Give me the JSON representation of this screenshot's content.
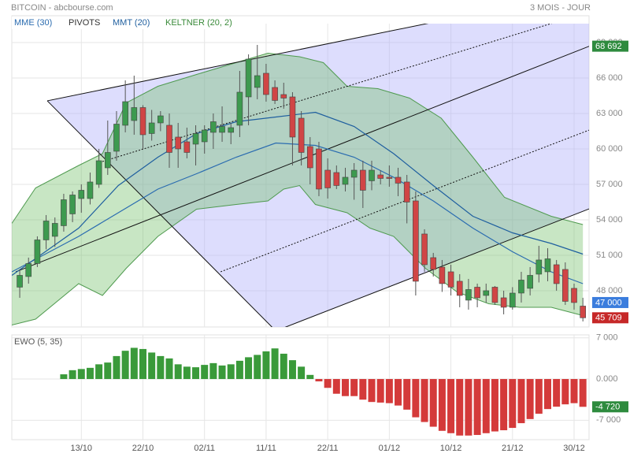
{
  "chart_data": [
    {
      "type": "candlestick",
      "title": "BITCOIN - abcbourse.com",
      "subtitle": "3 MOIS - JOUR",
      "up_color": "#3d9a4f",
      "down_color": "#d04545",
      "xlim": [
        -0.9,
        64.7
      ],
      "ylim": [
        44930,
        70600
      ],
      "yticks": [
        {
          "value": 69000,
          "label": "69 000"
        },
        {
          "value": 66000,
          "label": "66 000"
        },
        {
          "value": 63000,
          "label": "63 000"
        },
        {
          "value": 60000,
          "label": "60 000"
        },
        {
          "value": 57000,
          "label": "57 000"
        },
        {
          "value": 54000,
          "label": "54 000"
        },
        {
          "value": 51000,
          "label": "51 000"
        },
        {
          "value": 48000,
          "label": "48 000"
        }
      ],
      "grid": true,
      "open": [
        48300,
        49200,
        50300,
        52300,
        52600,
        53500,
        54500,
        55800,
        55800,
        57000,
        58400,
        59800,
        62000,
        62400,
        63500,
        61300,
        62200,
        62000,
        61000,
        60600,
        60400,
        60600,
        61400,
        61400,
        61400,
        62000,
        64400,
        65200,
        66400,
        65200,
        64600,
        64400,
        62600,
        60200,
        60000,
        58200,
        58000,
        57000,
        57600,
        58200,
        57300,
        57800,
        57600,
        57600,
        57200,
        55600,
        52800,
        50800,
        50000,
        49600,
        48800,
        47200,
        48300,
        47600,
        48300,
        47400,
        46600,
        47800,
        48200,
        49400,
        49600,
        50200,
        49800,
        48200,
        46700
      ],
      "high": [
        49800,
        50800,
        52600,
        54400,
        54200,
        56200,
        56400,
        57000,
        58000,
        60000,
        62400,
        63200,
        65800,
        66200,
        63700,
        63300,
        63200,
        63000,
        62200,
        61800,
        62000,
        62000,
        63000,
        63600,
        62200,
        66600,
        68000,
        68800,
        67200,
        65800,
        65600,
        64800,
        63200,
        61000,
        60600,
        59200,
        58600,
        58400,
        58800,
        59000,
        59000,
        58200,
        58600,
        58400,
        57800,
        56400,
        53200,
        51200,
        50600,
        50200,
        49400,
        49000,
        48600,
        48600,
        48400,
        48000,
        48300,
        49600,
        50000,
        51800,
        51600,
        50600,
        50400,
        48600,
        47400
      ],
      "low": [
        47400,
        48600,
        50000,
        51500,
        51700,
        53000,
        53800,
        54600,
        55300,
        56700,
        57800,
        59000,
        61400,
        61200,
        60000,
        60700,
        61500,
        58400,
        58400,
        59200,
        58600,
        59600,
        60000,
        60600,
        60400,
        61000,
        62000,
        64200,
        64000,
        63800,
        63400,
        58600,
        58600,
        57000,
        56000,
        55800,
        56600,
        56400,
        55700,
        55000,
        56500,
        57000,
        56800,
        56000,
        53700,
        47600,
        49600,
        49200,
        47900,
        47600,
        46600,
        46400,
        46600,
        47000,
        46800,
        46000,
        46400,
        47000,
        47600,
        48700,
        48800,
        48000,
        46800,
        46400,
        45400
      ],
      "close": [
        49300,
        50300,
        52300,
        53900,
        53700,
        55700,
        56100,
        56500,
        57200,
        59000,
        59700,
        62100,
        64000,
        63500,
        61200,
        62200,
        62800,
        59700,
        60000,
        59700,
        61300,
        61600,
        62300,
        61900,
        61800,
        64800,
        67600,
        66200,
        64600,
        64100,
        64300,
        61000,
        59700,
        58400,
        56600,
        56700,
        56900,
        57600,
        58200,
        56500,
        58200,
        57500,
        57500,
        57100,
        55500,
        48800,
        50200,
        49800,
        48600,
        48300,
        47600,
        48100,
        47400,
        48000,
        47000,
        46600,
        47800,
        48900,
        49300,
        50600,
        50700,
        48600,
        47100,
        47000,
        45709
      ],
      "keltner": {
        "name": "KELTNER (20, 2)",
        "color": "#4f9a4f",
        "fill": "rgba(110,190,100,0.38)",
        "upper": {
          "x": [
            -0.9,
            1.8,
            6.7,
            9.4,
            12.1,
            15.7,
            20.1,
            24.6,
            28.2,
            31.8,
            34.5,
            37.2,
            40.7,
            44.3,
            47.9,
            51.5,
            55.1,
            60.4,
            64
          ],
          "values": [
            53700,
            56700,
            58600,
            59600,
            63900,
            65300,
            66300,
            67300,
            68100,
            67800,
            67300,
            65300,
            65100,
            64300,
            62600,
            59300,
            55900,
            54300,
            53600
          ]
        },
        "lower": {
          "x": [
            -0.9,
            1.8,
            6.7,
            9.4,
            12.1,
            15.7,
            20.1,
            24.6,
            28.2,
            30,
            31.8,
            33.6,
            37.2,
            39.8,
            42.5,
            46.1,
            49.7,
            53.3,
            56.8,
            60.4,
            64
          ],
          "values": [
            45100,
            45600,
            48600,
            47600,
            49900,
            52600,
            54900,
            55300,
            55600,
            56600,
            56900,
            55300,
            54600,
            53300,
            52600,
            49900,
            47900,
            46900,
            46600,
            46600,
            45900
          ]
        }
      },
      "lines": [
        {
          "name": "MME (30)",
          "color": "#2b6cb0",
          "x": [
            -0.9,
            6.7,
            11.2,
            15.7,
            20.1,
            24.6,
            29.1,
            33.6,
            38,
            42.5,
            47,
            51.5,
            56,
            60.4,
            64
          ],
          "values": [
            49600,
            52600,
            54600,
            56600,
            57900,
            59300,
            60500,
            60300,
            59300,
            57600,
            55600,
            53300,
            51300,
            49600,
            48600
          ]
        },
        {
          "name": "MMT (20)",
          "color": "#1f5f9f",
          "x": [
            -0.9,
            6.7,
            11.2,
            15.7,
            20.1,
            24.6,
            29.1,
            33.6,
            38,
            42.5,
            47,
            51.5,
            56,
            60.4,
            64
          ],
          "values": [
            49300,
            53300,
            56900,
            59300,
            61300,
            62300,
            62700,
            63100,
            61900,
            59600,
            56900,
            54300,
            52900,
            52000,
            51100
          ]
        }
      ],
      "pivots": {
        "name": "PIVOTS",
        "color": "#111111",
        "fill": "rgba(175,175,250,0.42)",
        "area": {
          "x": [
            3.13,
            64.73,
            64.73,
            29.1
          ],
          "y": [
            64070,
            73400,
            54930,
            44600
          ]
        },
        "segments": [
          {
            "x": [
              3.13,
              64.73
            ],
            "y": [
              64070,
              73400
            ],
            "style": "solid"
          },
          {
            "x": [
              3.13,
              29.1
            ],
            "y": [
              64070,
              44600
            ],
            "style": "solid"
          },
          {
            "x": [
              29.1,
              64.73
            ],
            "y": [
              44600,
              54930
            ],
            "style": "solid"
          },
          {
            "x": [
              -0.45,
              64.73
            ],
            "y": [
              49600,
              68692
            ],
            "style": "solid"
          },
          {
            "x": [
              9.4,
              64.73
            ],
            "y": [
              58930,
              71600
            ],
            "style": "dotted"
          },
          {
            "x": [
              22.83,
              64.73
            ],
            "y": [
              49600,
              61600
            ],
            "style": "dotted"
          }
        ]
      },
      "price_labels": [
        {
          "value": 68692,
          "label": "68 692",
          "color": "#2e8b3e"
        },
        {
          "value": 47000,
          "label": "47 000",
          "color": "#3b7ddd"
        },
        {
          "value": 45709,
          "label": "45 709",
          "color": "#c62828"
        }
      ]
    },
    {
      "type": "bar",
      "title": "EWO (5, 35)",
      "up_color": "#3a9a3a",
      "down_color": "#d43a3a",
      "xlim": [
        -0.9,
        64.7
      ],
      "xticks": [
        {
          "value": 7,
          "label": "13/10"
        },
        {
          "value": 14,
          "label": "22/10"
        },
        {
          "value": 21,
          "label": "02/11"
        },
        {
          "value": 28,
          "label": "11/11"
        },
        {
          "value": 35,
          "label": "22/11"
        },
        {
          "value": 42,
          "label": "01/12"
        },
        {
          "value": 49,
          "label": "10/12"
        },
        {
          "value": 56,
          "label": "21/12"
        },
        {
          "value": 63,
          "label": "30/12"
        }
      ],
      "ylim": [
        -10300,
        7500
      ],
      "yticks": [
        {
          "value": 7000,
          "label": "7 000"
        },
        {
          "value": 0,
          "label": "0.000"
        },
        {
          "value": -7000,
          "label": "-7 000"
        }
      ],
      "values": [
        null,
        null,
        null,
        null,
        null,
        800,
        1500,
        1700,
        1900,
        2500,
        2800,
        3900,
        4800,
        5300,
        5100,
        4500,
        3900,
        3500,
        2500,
        2100,
        2000,
        2400,
        2700,
        2300,
        2500,
        3100,
        3700,
        4100,
        4700,
        5200,
        4300,
        3200,
        2100,
        700,
        -400,
        -1500,
        -2500,
        -2900,
        -2900,
        -3500,
        -3900,
        -4000,
        -4100,
        -4500,
        -5200,
        -6500,
        -7300,
        -8100,
        -8800,
        -9200,
        -9600,
        -9600,
        -9500,
        -9200,
        -8900,
        -8700,
        -8300,
        -7500,
        -6800,
        -5900,
        -5100,
        -4700,
        -4300,
        -4100,
        -4720
      ],
      "value_label": {
        "value": -4720,
        "label": "-4 720",
        "color": "#2e8b3e"
      }
    }
  ]
}
